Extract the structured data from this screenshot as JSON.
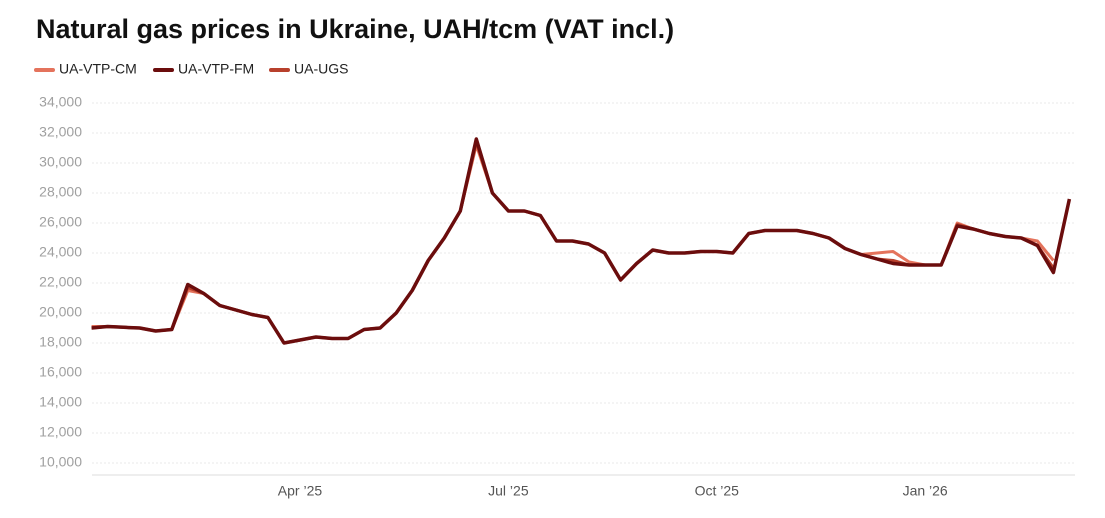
{
  "chart_data": {
    "type": "line",
    "title": "Natural gas prices in Ukraine, UAH/tcm (VAT incl.)",
    "categories": [
      null,
      null,
      null,
      null,
      null,
      null,
      null,
      null,
      null,
      null,
      null,
      null,
      null,
      "Apr ’25",
      null,
      null,
      null,
      null,
      null,
      null,
      null,
      null,
      null,
      null,
      null,
      null,
      "Jul ’25",
      null,
      null,
      null,
      null,
      null,
      null,
      null,
      null,
      null,
      null,
      null,
      null,
      "Oct ’25",
      null,
      null,
      null,
      null,
      null,
      null,
      null,
      null,
      null,
      null,
      null,
      null,
      "Jan ’26",
      null,
      null,
      null,
      null,
      null,
      null,
      null,
      null,
      null
    ],
    "series": [
      {
        "name": "UA-VTP-CM",
        "color": "#e4735c",
        "values": [
          19100,
          19100,
          19050,
          19000,
          18800,
          18900,
          21500,
          21300,
          20500,
          20200,
          19900,
          19700,
          18000,
          18200,
          18400,
          18300,
          18300,
          18900,
          19000,
          20000,
          21500,
          23500,
          25000,
          26800,
          31200,
          28000,
          26800,
          26800,
          26500,
          24800,
          24800,
          24600,
          24000,
          22200,
          23300,
          24200,
          24000,
          24000,
          24100,
          24100,
          24000,
          25300,
          25500,
          25500,
          25500,
          25300,
          25000,
          24300,
          23900,
          24000,
          24100,
          23400,
          23200,
          23200,
          26000,
          25600,
          25300,
          25100,
          25000,
          24800,
          23500,
          null
        ]
      },
      {
        "name": "UA-VTP-FM",
        "color": "#6b0d0d",
        "values": [
          19000,
          19100,
          19050,
          19000,
          18800,
          18900,
          21900,
          21300,
          20500,
          20200,
          19900,
          19700,
          18000,
          18200,
          18400,
          18300,
          18300,
          18900,
          19000,
          20000,
          21500,
          23500,
          25000,
          26800,
          31600,
          28000,
          26800,
          26800,
          26500,
          24800,
          24800,
          24600,
          24000,
          22200,
          23300,
          24200,
          24000,
          24000,
          24100,
          24100,
          24000,
          25300,
          25500,
          25500,
          25500,
          25300,
          25000,
          24300,
          23900,
          23600,
          23300,
          23200,
          23200,
          23200,
          25800,
          25600,
          25300,
          25100,
          25000,
          24500,
          22700,
          27600
        ]
      },
      {
        "name": "UA-UGS",
        "color": "#b8402c",
        "values": [
          19000,
          19100,
          19050,
          19000,
          18800,
          18900,
          21700,
          21300,
          20500,
          20200,
          19900,
          19700,
          18000,
          18200,
          18400,
          18300,
          18300,
          18900,
          19000,
          20000,
          21500,
          23500,
          25000,
          26800,
          31400,
          28000,
          26800,
          26800,
          26500,
          24800,
          24800,
          24600,
          24000,
          22200,
          23300,
          24200,
          24000,
          24000,
          24100,
          24100,
          24000,
          25300,
          25500,
          25500,
          25500,
          25300,
          25000,
          24300,
          23900,
          23600,
          23500,
          23200,
          23200,
          23200,
          25900,
          25600,
          25300,
          25100,
          25000,
          24500,
          23000,
          null
        ]
      }
    ],
    "ylim": [
      9200,
      34200
    ],
    "yticks": [
      {
        "value": 10000,
        "label": "10,000"
      },
      {
        "value": 12000,
        "label": "12,000"
      },
      {
        "value": 14000,
        "label": "14,000"
      },
      {
        "value": 16000,
        "label": "16,000"
      },
      {
        "value": 18000,
        "label": "18,000"
      },
      {
        "value": 20000,
        "label": "20,000"
      },
      {
        "value": 22000,
        "label": "22,000"
      },
      {
        "value": 24000,
        "label": "24,000"
      },
      {
        "value": 26000,
        "label": "26,000"
      },
      {
        "value": 28000,
        "label": "28,000"
      },
      {
        "value": 30000,
        "label": "30,000"
      },
      {
        "value": 32000,
        "label": "32,000"
      },
      {
        "value": 34000,
        "label": "34,000"
      }
    ],
    "grid": true
  }
}
